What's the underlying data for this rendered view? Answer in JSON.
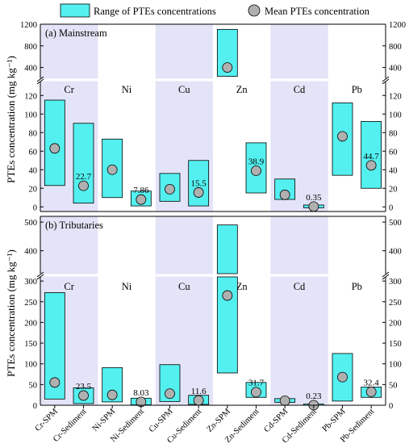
{
  "colors": {
    "range_fill": "#54f0f0",
    "shade": "#e4e4f8",
    "mean_fill": "#b0b0b0",
    "stroke": "#000000"
  },
  "legend": {
    "range_label": "Range of PTEs concentrations",
    "mean_label": "Mean PTEs concentration"
  },
  "elements": [
    "Cr",
    "Ni",
    "Cu",
    "Zn",
    "Cd",
    "Pb"
  ],
  "shaded_elements": [
    "Cr",
    "Cu",
    "Cd"
  ],
  "categories": [
    "Cr-SPM",
    "Cr-Sediment",
    "Ni-SPM",
    "Ni-Sediment",
    "Cu-SPM",
    "Cu-Sediment",
    "Zn-SPM",
    "Zn-Sediment",
    "Cd-SPM",
    "Cd-Sediment",
    "Pb-SPM",
    "Pb-Sediment"
  ],
  "chart_data": [
    {
      "type": "range-bar",
      "panel_label": "(a)  Mainstream",
      "ylabel": "PTEs concentration (mg kg⁻¹)",
      "broken_axis": true,
      "ylim_lower": [
        -5,
        135
      ],
      "ylim_upper": [
        200,
        1200
      ],
      "lower_ticks": [
        0,
        20,
        40,
        60,
        80,
        100,
        120
      ],
      "upper_ticks": [
        400,
        800,
        1200
      ],
      "ranges": [
        [
          23,
          115
        ],
        [
          4,
          90
        ],
        [
          10,
          73
        ],
        [
          1,
          17
        ],
        [
          6,
          36
        ],
        [
          1,
          50
        ],
        [
          237,
          1105
        ],
        [
          15,
          69
        ],
        [
          8,
          30
        ],
        [
          -1,
          2
        ],
        [
          34,
          112
        ],
        [
          20,
          92
        ]
      ],
      "means": [
        63,
        22.7,
        40,
        7.86,
        19,
        15.5,
        400,
        38.9,
        13,
        0.35,
        76,
        44.7
      ],
      "mean_labels": [
        "",
        "22.7",
        "",
        "7.86",
        "",
        "15.5",
        "",
        "38.9",
        "",
        "0.35",
        "",
        "44.7"
      ]
    },
    {
      "type": "range-bar",
      "panel_label": "(b)  Tributaries",
      "ylabel": "PTEs concentration (mg kg⁻¹)",
      "broken_axis": true,
      "ylim_lower": [
        0,
        310
      ],
      "ylim_upper": [
        320,
        520
      ],
      "lower_ticks": [
        0,
        50,
        100,
        150,
        200,
        250,
        300
      ],
      "upper_ticks": [
        400,
        500
      ],
      "ranges": [
        [
          15,
          272
        ],
        [
          4,
          42
        ],
        [
          8,
          91
        ],
        [
          1,
          17
        ],
        [
          9,
          98
        ],
        [
          2,
          24
        ],
        [
          78,
          490
        ],
        [
          19,
          55
        ],
        [
          7,
          16
        ],
        [
          -1,
          3
        ],
        [
          10,
          125
        ],
        [
          19,
          44
        ]
      ],
      "means": [
        55,
        23.5,
        25,
        8.03,
        28,
        11.6,
        265,
        31.7,
        11,
        0.23,
        68,
        32.4
      ],
      "mean_labels": [
        "",
        "23.5",
        "",
        "8.03",
        "",
        "11.6",
        "",
        "31.7",
        "",
        "0.23",
        "",
        "32.4"
      ]
    }
  ]
}
